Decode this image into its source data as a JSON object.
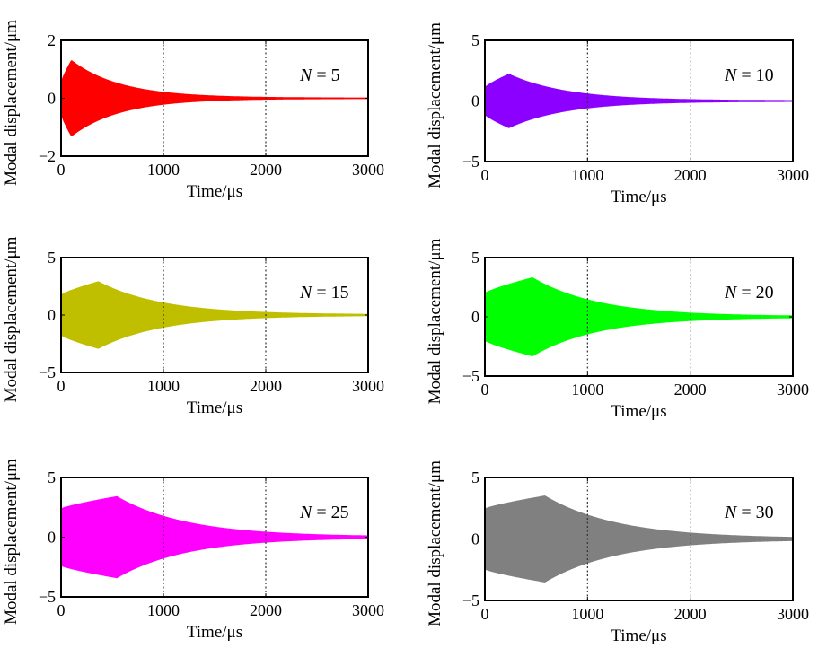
{
  "chart_data": [
    {
      "type": "area",
      "label": "N = 5",
      "n_value": "5",
      "color": "#ff0000",
      "ylim": [
        -2,
        2
      ],
      "yticks": [
        "−2",
        "0",
        "2"
      ],
      "xlim": [
        0,
        3000
      ],
      "xticks": [
        "0",
        "1000",
        "2000",
        "3000"
      ],
      "envelope": {
        "peak_time": 100,
        "peak_amplitude": 1.3,
        "rise_start": 0.4,
        "decay_tau": 480
      },
      "xlabel": "Time/μs",
      "ylabel": "Modal displacement/μm"
    },
    {
      "type": "area",
      "label": "N = 10",
      "n_value": "10",
      "color": "#8c00ff",
      "ylim": [
        -5,
        5
      ],
      "yticks": [
        "−5",
        "0",
        "5"
      ],
      "xlim": [
        0,
        3000
      ],
      "xticks": [
        "0",
        "1000",
        "2000",
        "3000"
      ],
      "envelope": {
        "peak_time": 230,
        "peak_amplitude": 2.2,
        "rise_start": 0.5,
        "decay_tau": 560
      },
      "xlabel": "Time/μs",
      "ylabel": "Modal displacement/μm"
    },
    {
      "type": "area",
      "label": "N = 15",
      "n_value": "15",
      "color": "#bfbf00",
      "ylim": [
        -5,
        5
      ],
      "yticks": [
        "−5",
        "0",
        "5"
      ],
      "xlim": [
        0,
        3000
      ],
      "xticks": [
        "0",
        "1000",
        "2000",
        "3000"
      ],
      "envelope": {
        "peak_time": 360,
        "peak_amplitude": 2.9,
        "rise_start": 0.6,
        "decay_tau": 620
      },
      "xlabel": "Time/μs",
      "ylabel": "Modal displacement/μm"
    },
    {
      "type": "area",
      "label": "N = 20",
      "n_value": "20",
      "color": "#00ff00",
      "ylim": [
        -5,
        5
      ],
      "yticks": [
        "−5",
        "0",
        "5"
      ],
      "xlim": [
        0,
        3000
      ],
      "xticks": [
        "0",
        "1000",
        "2000",
        "3000"
      ],
      "envelope": {
        "peak_time": 460,
        "peak_amplitude": 3.3,
        "rise_start": 0.6,
        "decay_tau": 640
      },
      "xlabel": "Time/μs",
      "ylabel": "Modal displacement/μm"
    },
    {
      "type": "area",
      "label": "N = 25",
      "n_value": "25",
      "color": "#ff00ff",
      "ylim": [
        -5,
        5
      ],
      "yticks": [
        "−5",
        "0",
        "5"
      ],
      "xlim": [
        0,
        3000
      ],
      "xticks": [
        "0",
        "1000",
        "2000",
        "3000"
      ],
      "envelope": {
        "peak_time": 540,
        "peak_amplitude": 3.4,
        "rise_start": 0.7,
        "decay_tau": 680
      },
      "xlabel": "Time/μs",
      "ylabel": "Modal displacement/μm"
    },
    {
      "type": "area",
      "label": "N = 30",
      "n_value": "30",
      "color": "#808080",
      "ylim": [
        -5,
        5
      ],
      "yticks": [
        "−5",
        "0",
        "5"
      ],
      "xlim": [
        0,
        3000
      ],
      "xticks": [
        "0",
        "1000",
        "2000",
        "3000"
      ],
      "envelope": {
        "peak_time": 580,
        "peak_amplitude": 3.5,
        "rise_start": 0.7,
        "decay_tau": 700
      },
      "xlabel": "Time/μs",
      "ylabel": "Modal displacement/μm"
    }
  ],
  "reference_lines_x": [
    1000,
    2000
  ],
  "grid": false
}
